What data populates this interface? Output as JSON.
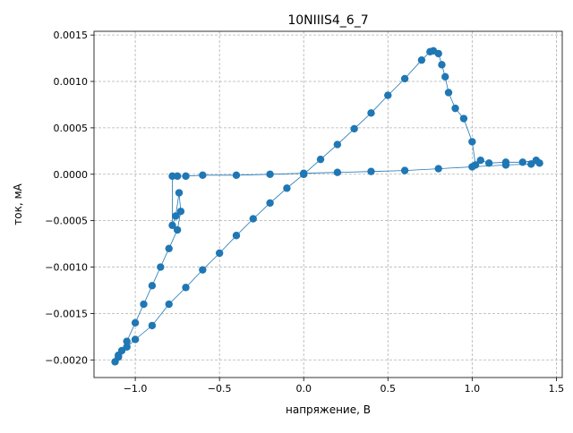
{
  "chart_data": {
    "type": "scatter",
    "title": "10NIIIS4_6_7",
    "xlabel": "напряжение, В",
    "ylabel": "ток, мА",
    "xlim": [
      -1.245,
      1.535
    ],
    "ylim": [
      -0.00219,
      0.00154
    ],
    "xticks": [
      -1.0,
      -0.5,
      0.0,
      0.5,
      1.0,
      1.5
    ],
    "xtick_labels": [
      "−1.0",
      "−0.5",
      "0.0",
      "0.5",
      "1.0",
      "1.5"
    ],
    "yticks": [
      -0.002,
      -0.0015,
      -0.001,
      -0.0005,
      0.0,
      0.0005,
      0.001,
      0.0015
    ],
    "ytick_labels": [
      "−0.0020",
      "−0.0015",
      "−0.0010",
      "−0.0005",
      "0.0000",
      "0.0005",
      "0.0010",
      "0.0015"
    ],
    "grid": true,
    "grid_style": "dashed",
    "marker_color": "#1f77b4",
    "series": [
      {
        "x": [
          0.0,
          0.1,
          0.2,
          0.3,
          0.4,
          0.5,
          0.6,
          0.7,
          0.75,
          0.77,
          0.8,
          0.82,
          0.84,
          0.86,
          0.9,
          0.95,
          1.0,
          1.02,
          1.05,
          1.1,
          1.2,
          1.3,
          1.38,
          1.4,
          1.35,
          1.2,
          1.0,
          0.8,
          0.6,
          0.4,
          0.2,
          0.0,
          -0.2,
          -0.4,
          -0.6,
          -0.7,
          -0.75,
          -0.78,
          -0.78,
          -0.76,
          -0.74,
          -0.73,
          -0.75,
          -0.8,
          -0.85,
          -0.9,
          -0.95,
          -1.0,
          -1.05,
          -1.08,
          -1.1,
          -1.12,
          -1.1,
          -1.05,
          -1.0,
          -0.9,
          -0.8,
          -0.7,
          -0.6,
          -0.5,
          -0.4,
          -0.3,
          -0.2,
          -0.1,
          0.0
        ],
        "y": [
          0.0,
          0.00016,
          0.00032,
          0.00049,
          0.00066,
          0.00085,
          0.00103,
          0.00123,
          0.00132,
          0.00133,
          0.0013,
          0.00118,
          0.00105,
          0.00088,
          0.00071,
          0.0006,
          0.00035,
          0.0001,
          0.00015,
          0.00012,
          0.00013,
          0.00013,
          0.00015,
          0.00012,
          0.00011,
          0.0001,
          8e-05,
          6e-05,
          4e-05,
          3e-05,
          2e-05,
          1e-05,
          0.0,
          -1e-05,
          -1e-05,
          -2e-05,
          -2e-05,
          -2e-05,
          -0.00055,
          -0.00045,
          -0.0002,
          -0.0004,
          -0.0006,
          -0.0008,
          -0.001,
          -0.0012,
          -0.0014,
          -0.0016,
          -0.0018,
          -0.0019,
          -0.00197,
          -0.00202,
          -0.00195,
          -0.00186,
          -0.00178,
          -0.00163,
          -0.0014,
          -0.00122,
          -0.00103,
          -0.00085,
          -0.00066,
          -0.00048,
          -0.00031,
          -0.00015,
          0.0
        ]
      }
    ]
  }
}
